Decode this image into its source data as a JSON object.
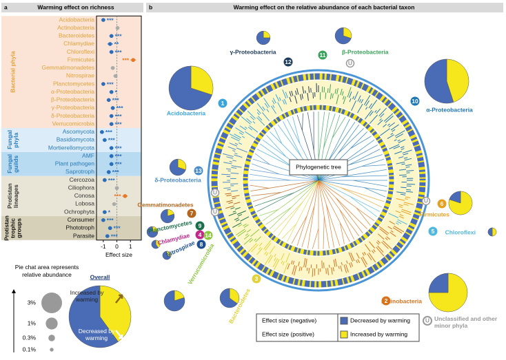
{
  "panels": {
    "a": "a",
    "b": "b",
    "a_title": "Warming effect on richness",
    "b_title": "Warming effect on the relative abundance of each bacterial taxon"
  },
  "chart_data": [
    {
      "type": "forest",
      "title": "Warming effect on richness",
      "xlabel": "Effect size",
      "xlim": [
        -1.5,
        1.8
      ],
      "xticks": [
        -1,
        0,
        1
      ],
      "groups": [
        {
          "name": "Bacterial phyla",
          "color": "#fbe4d5",
          "label_color": "#e3a23a",
          "categories": [
            "Acidobacteria",
            "Actinobacteria",
            "Bacteroidetes",
            "Chlamydiae",
            "Chloroflexi",
            "Firmicutes",
            "Gemmatimonadetes",
            "Nitrospirae",
            "Planctomycetes",
            "α-Proteobacteria",
            "β-Proteobacteria",
            "γ-Proteobacteria",
            "δ-Proteobacteria",
            "Verrucomicrobia"
          ],
          "values": [
            -1.0,
            0.05,
            -0.4,
            -0.5,
            -0.4,
            1.2,
            -0.3,
            -0.1,
            -1.0,
            -0.4,
            -0.6,
            -0.3,
            -0.4,
            -0.4
          ],
          "errors": [
            0.15,
            0.12,
            0.15,
            0.2,
            0.15,
            0.2,
            0.15,
            0.15,
            0.15,
            0.15,
            0.15,
            0.15,
            0.15,
            0.15
          ],
          "significance": [
            "***",
            null,
            "***",
            "**",
            "***",
            "***",
            null,
            null,
            "***",
            "*",
            "***",
            "***",
            "***",
            "***"
          ],
          "colors": [
            "#2a6ebb",
            "#aaaaaa",
            "#2a6ebb",
            "#2a6ebb",
            "#2a6ebb",
            "#e87722",
            "#aaaaaa",
            "#aaaaaa",
            "#2a6ebb",
            "#2a6ebb",
            "#2a6ebb",
            "#2a6ebb",
            "#2a6ebb",
            "#2a6ebb"
          ]
        },
        {
          "name": "Fungal phyla",
          "color": "#dcedf9",
          "label_color": "#2b7bb9",
          "categories": [
            "Ascomycota",
            "Basidiomycota",
            "Mortierellomycota"
          ],
          "values": [
            -1.1,
            -0.9,
            -0.4
          ],
          "errors": [
            0.15,
            0.15,
            0.15
          ],
          "significance": [
            "***",
            "***",
            "***"
          ],
          "colors": [
            "#2a6ebb",
            "#2a6ebb",
            "#2a6ebb"
          ]
        },
        {
          "name": "Fungal guilds",
          "color": "#b9dbf1",
          "label_color": "#2b7bb9",
          "categories": [
            "AMF",
            "Plant pathogen",
            "Saprotroph"
          ],
          "values": [
            -0.4,
            -0.4,
            -0.6
          ],
          "errors": [
            0.15,
            0.15,
            0.15
          ],
          "significance": [
            "***",
            "***",
            "***"
          ],
          "colors": [
            "#2a6ebb",
            "#2a6ebb",
            "#2a6ebb"
          ]
        },
        {
          "name": "Protistan lineages",
          "color": "#e9e5d6",
          "label_color": "#333333",
          "categories": [
            "Cercozoa",
            "Ciliophora",
            "Conosa",
            "Lobosa",
            "Ochrophyta"
          ],
          "values": [
            -0.9,
            0.0,
            0.6,
            -0.2,
            -0.9
          ],
          "errors": [
            0.15,
            0.15,
            0.2,
            0.15,
            0.15
          ],
          "significance": [
            "***",
            null,
            "***",
            null,
            "*"
          ],
          "colors": [
            "#2a6ebb",
            "#aaaaaa",
            "#e87722",
            "#aaaaaa",
            "#2a6ebb"
          ]
        },
        {
          "name": "Protistan trophic groups",
          "color": "#d6d0b8",
          "label_color": "#111111",
          "categories": [
            "Consumer",
            "Phototroph",
            "Parasite"
          ],
          "values": [
            -1.0,
            -0.5,
            -0.7
          ],
          "errors": [
            0.15,
            0.15,
            0.15
          ],
          "significance": [
            "***",
            "***",
            "***"
          ],
          "colors": [
            "#2a6ebb",
            "#2a6ebb",
            "#2a6ebb"
          ]
        }
      ]
    },
    {
      "type": "pie",
      "categories": [
        "Acidobacteria",
        "Actinobacteria",
        "Bacteroidetes",
        "Chlamydiae",
        "Chloroflexi",
        "Firmicutes",
        "Gemmatimonadetes",
        "Nitrospirae",
        "Planctomycetes",
        "α-Proteobacteria",
        "β-Proteobacteria",
        "γ-Proteobacteria",
        "δ-Proteobacteria",
        "Verrucomicrobia"
      ],
      "numbers": [
        "1",
        "2",
        "3",
        "4",
        "5",
        "6",
        "7",
        "8",
        "9",
        "10",
        "11",
        "12",
        "13",
        "14"
      ],
      "label_colors": [
        "#3aa4dc",
        "#d9731b",
        "#e2d33c",
        "#c2288a",
        "#4fb8dc",
        "#e8a020",
        "#b5651d",
        "#1d4f91",
        "#1a6e4a",
        "#1f77b4",
        "#3aa35a",
        "#1d3b5c",
        "#4a8bc9",
        "#8dc63f"
      ],
      "abundance": [
        13.7,
        10.5,
        2.6,
        0.5,
        0.5,
        3.9,
        1.3,
        0.5,
        0.85,
        13.7,
        1.9,
        1.3,
        1.9,
        3
      ],
      "series": [
        {
          "name": "Increased by warming",
          "color": "#f6e71c",
          "values": [
            30,
            75,
            35,
            40,
            50,
            80,
            20,
            30,
            25,
            45,
            30,
            25,
            30,
            20
          ]
        },
        {
          "name": "Decreased by warming",
          "color": "#4a6bb5",
          "values": [
            70,
            25,
            65,
            60,
            50,
            20,
            80,
            70,
            75,
            55,
            70,
            75,
            70,
            80
          ]
        }
      ],
      "size_legend": {
        "title": "Pie chat area represents relative abundance",
        "sizes": [
          {
            "value": 3,
            "label": "3%"
          },
          {
            "value": 1,
            "label": "1%"
          },
          {
            "value": 0.3,
            "label": "0.3%"
          },
          {
            "value": 0.1,
            "label": "0.1%"
          }
        ]
      }
    },
    {
      "type": "pie",
      "title": "Overall",
      "series": [
        {
          "name": "Increased by warming",
          "color": "#f6e71c",
          "values": [
            40
          ]
        },
        {
          "name": "Decreased by warming",
          "color": "#4a6bb5",
          "values": [
            60
          ]
        }
      ]
    }
  ],
  "diagram": {
    "tree_label": "Phylogenetic tree",
    "effect_negative": "Effect size (negative)",
    "effect_positive": "Effect size (positive)",
    "unclassified_marker": "U",
    "unclassified_label": "Unclassified and other minor phyla"
  }
}
